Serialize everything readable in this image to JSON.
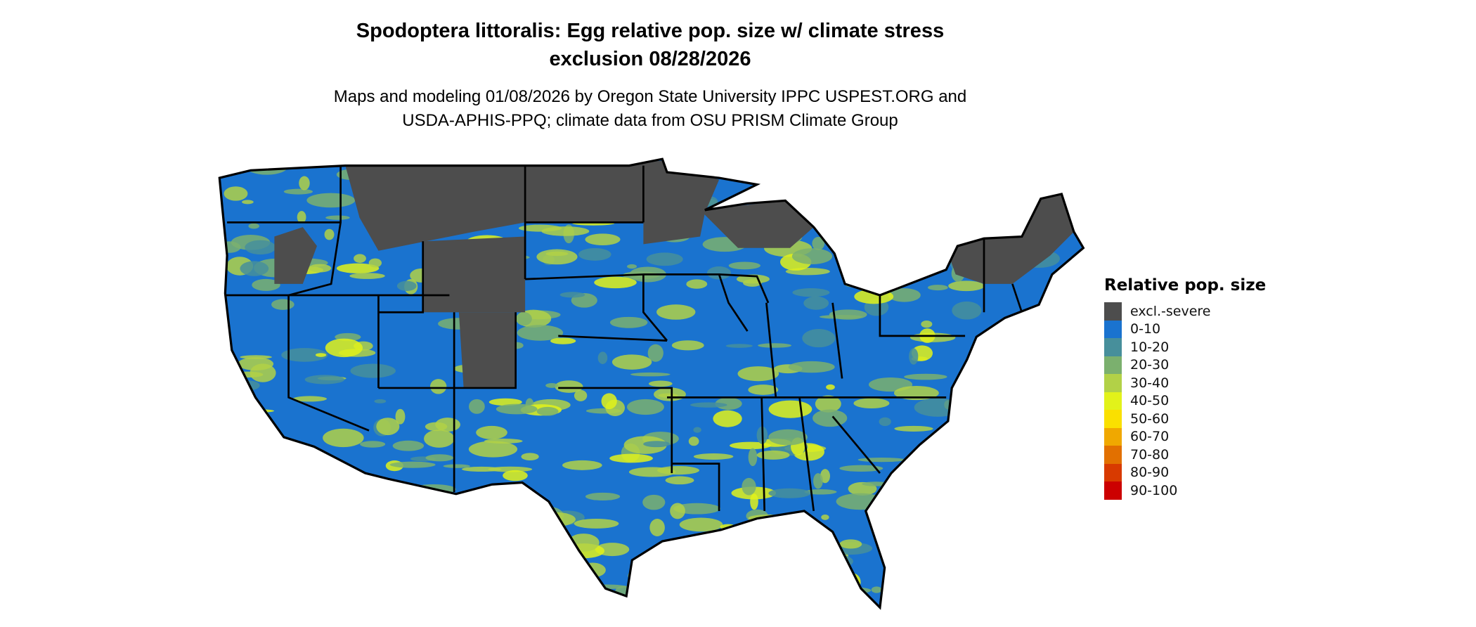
{
  "title": {
    "line1": "Spodoptera littoralis: Egg relative pop. size w/ climate stress",
    "line2": "exclusion 08/28/2026"
  },
  "subtitle": {
    "line1": "Maps and modeling 01/08/2026 by Oregon State University IPPC USPEST.ORG and",
    "line2": "USDA-APHIS-PPQ; climate data from OSU PRISM Climate Group"
  },
  "legend": {
    "title": "Relative pop. size",
    "items": [
      {
        "label": "excl.-severe",
        "color": "#4d4d4d"
      },
      {
        "label": "0-10",
        "color": "#1a73cf"
      },
      {
        "label": "10-20",
        "color": "#478f9b"
      },
      {
        "label": "20-30",
        "color": "#7bb06e"
      },
      {
        "label": "30-40",
        "color": "#b2d147"
      },
      {
        "label": "40-50",
        "color": "#e2f21a"
      },
      {
        "label": "50-60",
        "color": "#fae000"
      },
      {
        "label": "60-70",
        "color": "#f0a800"
      },
      {
        "label": "70-80",
        "color": "#e27000"
      },
      {
        "label": "80-90",
        "color": "#d83a00"
      },
      {
        "label": "90-100",
        "color": "#cc0000"
      }
    ]
  },
  "map": {
    "region": "Conterminous United States",
    "border_color": "#000000"
  }
}
